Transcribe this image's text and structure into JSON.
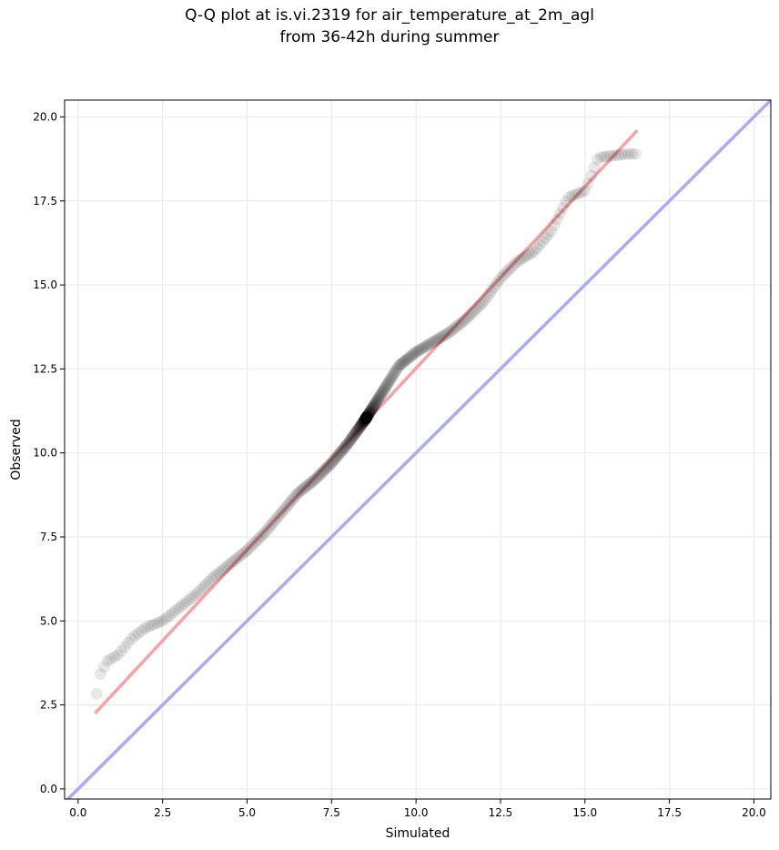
{
  "chart_data": {
    "type": "scatter",
    "title": "Q-Q plot at is.vi.2319 for air_temperature_at_2m_agl",
    "subtitle": "from 36-42h during summer",
    "xlabel": "Simulated",
    "ylabel": "Observed",
    "xlim": [
      -0.4,
      20.5
    ],
    "ylim": [
      -0.3,
      20.5
    ],
    "xticks": [
      0.0,
      2.5,
      5.0,
      7.5,
      10.0,
      12.5,
      15.0,
      17.5,
      20.0
    ],
    "yticks": [
      0.0,
      2.5,
      5.0,
      7.5,
      10.0,
      12.5,
      15.0,
      17.5,
      20.0
    ],
    "xtick_labels": [
      "0.0",
      "2.5",
      "5.0",
      "7.5",
      "10.0",
      "12.5",
      "15.0",
      "17.5",
      "20.0"
    ],
    "ytick_labels": [
      "0.0",
      "2.5",
      "5.0",
      "7.5",
      "10.0",
      "12.5",
      "15.0",
      "17.5",
      "20.0"
    ],
    "grid": true,
    "reference_line": {
      "from": [
        -0.4,
        -0.4
      ],
      "to": [
        20.5,
        20.5
      ],
      "color": "#aaaaf5"
    },
    "fit_line": {
      "from": [
        0.5,
        2.25
      ],
      "to": [
        16.55,
        19.6
      ],
      "color": "#f5a3a3"
    },
    "quantile_knots": {
      "x": [
        0.5,
        0.55,
        0.6,
        0.85,
        1.2,
        1.6,
        2.0,
        2.5,
        3.0,
        3.5,
        4.0,
        4.5,
        5.0,
        5.5,
        6.0,
        6.5,
        7.0,
        7.5,
        8.0,
        8.5,
        9.0,
        9.5,
        10.0,
        10.5,
        11.0,
        11.5,
        12.0,
        12.5,
        13.0,
        13.5,
        14.0,
        14.5,
        15.0,
        15.4,
        16.3,
        16.55
      ],
      "y": [
        1.5,
        2.8,
        3.3,
        3.8,
        4.0,
        4.5,
        4.8,
        5.0,
        5.4,
        5.8,
        6.3,
        6.7,
        7.1,
        7.6,
        8.2,
        8.8,
        9.2,
        9.7,
        10.3,
        11.0,
        11.8,
        12.6,
        13.0,
        13.3,
        13.6,
        14.0,
        14.5,
        15.2,
        15.7,
        16.0,
        16.6,
        17.6,
        17.8,
        18.8,
        18.9,
        18.9
      ]
    },
    "n_points": 360,
    "point_color": "#000000"
  }
}
